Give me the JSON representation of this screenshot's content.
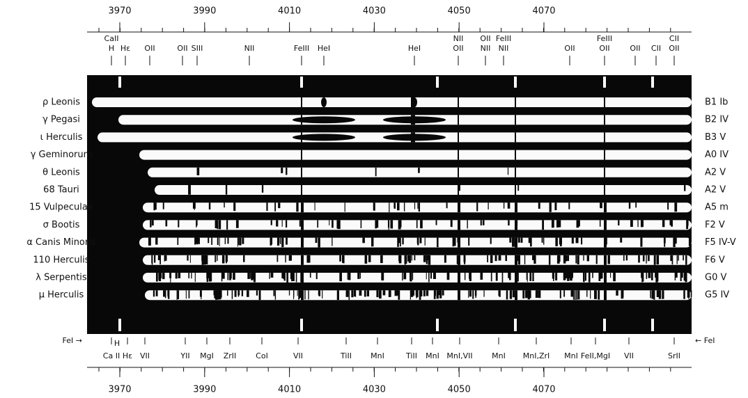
{
  "top_scale": {
    "labels": [
      3970,
      3990,
      4010,
      4030,
      4050,
      4070
    ]
  },
  "top_lines": [
    [
      "CaII",
      "H"
    ],
    [
      "Hε"
    ],
    [
      "OII"
    ],
    [
      "OII"
    ],
    [
      "SIII"
    ],
    [
      "NII"
    ],
    [
      "FeIII"
    ],
    [
      "HeI"
    ],
    [
      "HeI"
    ],
    [
      "NII",
      "OII"
    ],
    [
      "OII",
      "NII"
    ],
    [
      "FeIII",
      "NII"
    ],
    [
      "OII"
    ],
    [
      "FeIII",
      "OII"
    ],
    [
      "OII"
    ],
    [
      "CII"
    ],
    [
      "CII",
      "OII"
    ]
  ],
  "stars": [
    {
      "name": "ρ Leonis",
      "type": "B1 Ib"
    },
    {
      "name": "γ Pegasi",
      "type": "B2 IV"
    },
    {
      "name": "ι Herculis",
      "type": "B3 V"
    },
    {
      "name": "γ Geminorum",
      "type": "A0 IV"
    },
    {
      "name": "θ Leonis",
      "type": "A2 V"
    },
    {
      "name": "68 Tauri",
      "type": "A2 V"
    },
    {
      "name": "15 Vulpeculae",
      "type": "A5 m"
    },
    {
      "name": "σ Bootis",
      "type": "F2 V"
    },
    {
      "name": "α Canis Minoris",
      "type": "F5 IV-V"
    },
    {
      "name": "110 Herculis",
      "type": "F6 V"
    },
    {
      "name": "λ Serpentis",
      "type": "G0 V"
    },
    {
      "name": "μ Herculis",
      "type": "G5 IV"
    }
  ],
  "fe_left": "FeI →",
  "fe_right": "← FeI",
  "h_label": "H",
  "bottom_lines": [
    "Ca II",
    "Hε",
    "VII",
    "YII",
    "MgI",
    "ZrII",
    "CoI",
    "VII",
    "TiII",
    "MnI",
    "TiII",
    "MnI",
    "MnI,VII",
    "MnI",
    "MnI,ZrI",
    "MnI",
    "FeII,MgI",
    "VII",
    "SrII"
  ],
  "bottom_scale": {
    "labels": [
      3970,
      3990,
      4010,
      4030,
      4050,
      4070
    ]
  }
}
